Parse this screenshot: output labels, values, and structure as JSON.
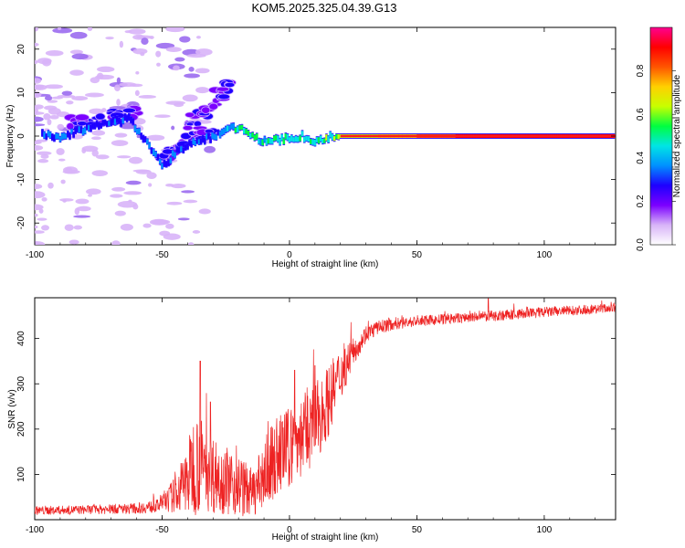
{
  "title": "KOM5.2025.325.04.39.G13",
  "chart_data": [
    {
      "type": "heatmap",
      "name": "spectrogram",
      "xlabel": "Height of straight line (km)",
      "ylabel": "Frequency (Hz)",
      "xlim": [
        -100,
        128
      ],
      "ylim": [
        -25,
        25
      ],
      "xticks": [
        -100,
        -50,
        0,
        50,
        100
      ],
      "yticks": [
        -20,
        -10,
        0,
        10,
        20
      ],
      "colorbar": {
        "label": "Normalized spectral amplitude",
        "range": [
          0.0,
          1.0
        ],
        "ticks": [
          "0.0",
          "0.2",
          "0.4",
          "0.6",
          "0.8"
        ],
        "colors": [
          "#ffffff",
          "#d8b4f8",
          "#7b00ff",
          "#1e00ff",
          "#0090ff",
          "#00e5e5",
          "#00ff40",
          "#c8ff00",
          "#ffd000",
          "#ff5500",
          "#ff0000",
          "#ff0090"
        ]
      },
      "trace": [
        {
          "x": -97,
          "f": 0.5,
          "a": 0.3
        },
        {
          "x": -90,
          "f": -0.5,
          "a": 0.35
        },
        {
          "x": -84,
          "f": 1,
          "a": 0.3
        },
        {
          "x": -78,
          "f": 2,
          "a": 0.3
        },
        {
          "x": -70,
          "f": 3,
          "a": 0.3
        },
        {
          "x": -63,
          "f": 4,
          "a": 0.3
        },
        {
          "x": -55,
          "f": -2,
          "a": 0.3
        },
        {
          "x": -50,
          "f": -7,
          "a": 0.3
        },
        {
          "x": -45,
          "f": -4,
          "a": 0.3
        },
        {
          "x": -40,
          "f": -2,
          "a": 0.32
        },
        {
          "x": -34,
          "f": -1,
          "a": 0.3
        },
        {
          "x": -28,
          "f": 0.5,
          "a": 0.3
        },
        {
          "x": -22,
          "f": 2,
          "a": 0.45
        },
        {
          "x": -17,
          "f": 1.5,
          "a": 0.5
        },
        {
          "x": -12,
          "f": -1,
          "a": 0.45
        },
        {
          "x": -6,
          "f": -1,
          "a": 0.5
        },
        {
          "x": 0,
          "f": -0.5,
          "a": 0.5
        },
        {
          "x": 5,
          "f": 0,
          "a": 0.5
        },
        {
          "x": 10,
          "f": -1.5,
          "a": 0.5
        },
        {
          "x": 16,
          "f": 0,
          "a": 0.55
        },
        {
          "x": 25,
          "f": 0,
          "a": 0.65
        },
        {
          "x": 40,
          "f": 0,
          "a": 0.7
        },
        {
          "x": 60,
          "f": 0,
          "a": 0.85
        },
        {
          "x": 80,
          "f": 0,
          "a": 0.9
        },
        {
          "x": 100,
          "f": 0,
          "a": 0.92
        },
        {
          "x": 128,
          "f": 0,
          "a": 0.92
        }
      ],
      "branches": [
        {
          "x": [
            -40,
            -30,
            -24
          ],
          "f": [
            3,
            7,
            12
          ]
        },
        {
          "x": [
            -52,
            -42,
            -32
          ],
          "f": [
            -6,
            -2,
            2
          ]
        },
        {
          "x": [
            -85,
            -70,
            -60
          ],
          "f": [
            3,
            4,
            6
          ]
        }
      ]
    },
    {
      "type": "line",
      "name": "snr",
      "xlabel": "Height of straight line (km)",
      "ylabel": "SNR (v/v)",
      "xlim": [
        -100,
        128
      ],
      "ylim": [
        0,
        490
      ],
      "xticks": [
        -100,
        -50,
        0,
        50,
        100
      ],
      "yticks": [
        100,
        200,
        300,
        400
      ],
      "color": "#ee2222",
      "envelope": {
        "x": [
          -100,
          -80,
          -60,
          -52,
          -45,
          -40,
          -37,
          -33,
          -28,
          -20,
          -14,
          -10,
          -5,
          0,
          5,
          10,
          15,
          20,
          25,
          30,
          35,
          40,
          50,
          60,
          80,
          100,
          128
        ],
        "mean": [
          20,
          22,
          25,
          30,
          55,
          90,
          130,
          110,
          95,
          75,
          60,
          100,
          140,
          160,
          185,
          210,
          260,
          320,
          370,
          410,
          425,
          432,
          438,
          442,
          450,
          458,
          468
        ],
        "noise": [
          10,
          10,
          12,
          15,
          40,
          80,
          120,
          100,
          80,
          70,
          50,
          80,
          90,
          90,
          90,
          90,
          80,
          60,
          30,
          20,
          15,
          15,
          12,
          12,
          12,
          12,
          10
        ]
      },
      "peaks": [
        {
          "x": -35,
          "y": 350
        },
        {
          "x": -31,
          "y": 260
        },
        {
          "x": 2,
          "y": 330
        },
        {
          "x": 10,
          "y": 340
        },
        {
          "x": 78,
          "y": 488
        }
      ]
    }
  ]
}
